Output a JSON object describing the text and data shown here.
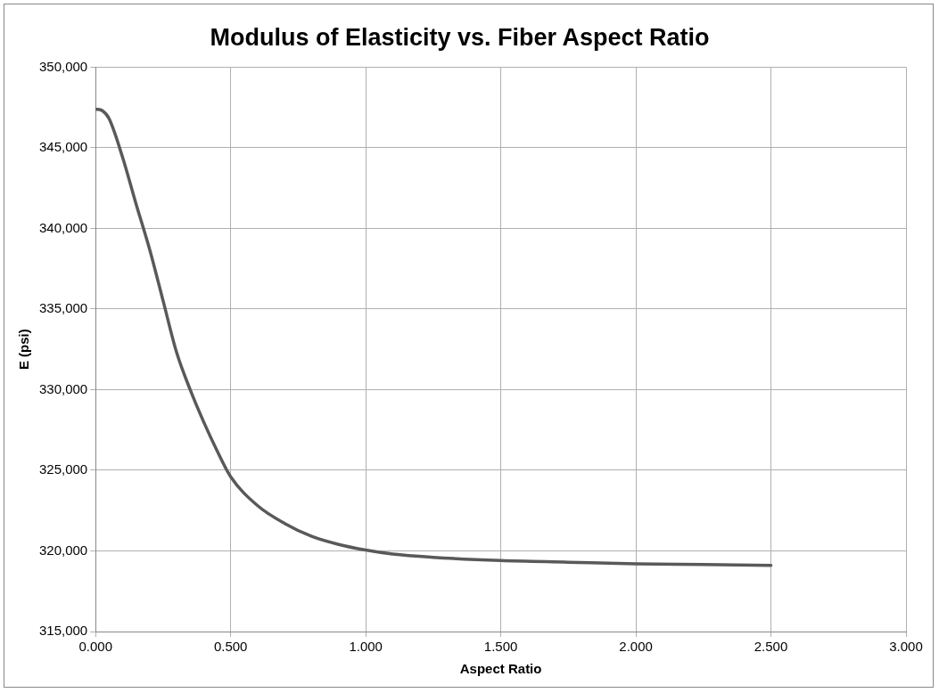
{
  "chart_data": {
    "type": "line",
    "title": "Modulus of Elasticity vs. Fiber Aspect Ratio",
    "xlabel": "Aspect Ratio",
    "ylabel": "E (psi)",
    "x": [
      0,
      0.025,
      0.05,
      0.1,
      0.15,
      0.2,
      0.25,
      0.3,
      0.35,
      0.4,
      0.45,
      0.5,
      0.6,
      0.7,
      0.8,
      0.9,
      1.0,
      1.1,
      1.25,
      1.5,
      1.75,
      2.0,
      2.25,
      2.5
    ],
    "series": [
      {
        "color": "#595959",
        "values": [
          347400,
          347300,
          346800,
          344400,
          341500,
          338700,
          335500,
          332300,
          330000,
          328000,
          326200,
          324600,
          322800,
          321700,
          320900,
          320400,
          320050,
          319800,
          319600,
          319400,
          319300,
          319200,
          319150,
          319100
        ]
      }
    ],
    "xlim": [
      0,
      3
    ],
    "xticks": [
      {
        "value": 0,
        "label": "0.000"
      },
      {
        "value": 0.5,
        "label": "0.500"
      },
      {
        "value": 1,
        "label": "1.000"
      },
      {
        "value": 1.5,
        "label": "1.500"
      },
      {
        "value": 2,
        "label": "2.000"
      },
      {
        "value": 2.5,
        "label": "2.500"
      },
      {
        "value": 3,
        "label": "3.000"
      }
    ],
    "ylim": [
      315000,
      350000
    ],
    "yticks": [
      {
        "value": 315000,
        "label": "315,000"
      },
      {
        "value": 320000,
        "label": "320,000"
      },
      {
        "value": 325000,
        "label": "325,000"
      },
      {
        "value": 330000,
        "label": "330,000"
      },
      {
        "value": 335000,
        "label": "335,000"
      },
      {
        "value": 340000,
        "label": "340,000"
      },
      {
        "value": 345000,
        "label": "345,000"
      },
      {
        "value": 350000,
        "label": "350,000"
      }
    ],
    "grid": true,
    "legend": false,
    "marker": "none",
    "line_style": "solid"
  }
}
